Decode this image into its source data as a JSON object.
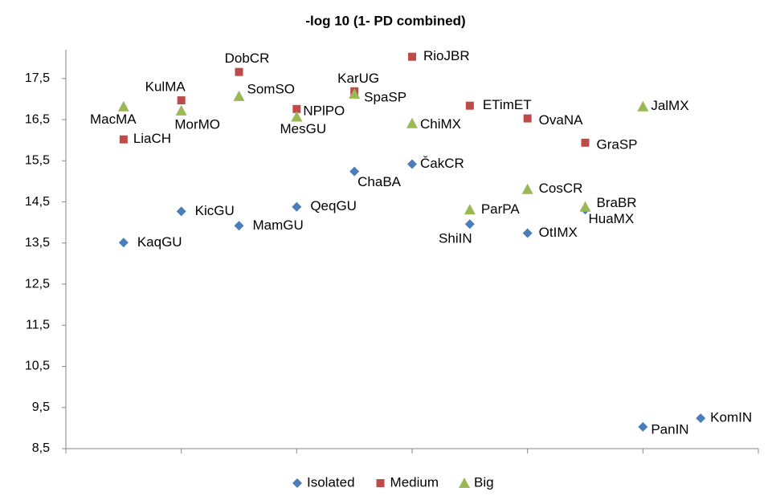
{
  "chart_data": {
    "type": "scatter",
    "title": "-log 10 (1- PD combined)",
    "xlim": [
      0,
      12
    ],
    "xticks": [
      0,
      2,
      4,
      6,
      8,
      10,
      12
    ],
    "ylim": [
      8.5,
      18.2
    ],
    "yticks": [
      {
        "value": 8.5,
        "label": "8,5"
      },
      {
        "value": 9.5,
        "label": "9,5"
      },
      {
        "value": 10.5,
        "label": "10,5"
      },
      {
        "value": 11.5,
        "label": "11,5"
      },
      {
        "value": 12.5,
        "label": "12,5"
      },
      {
        "value": 13.5,
        "label": "13,5"
      },
      {
        "value": 14.5,
        "label": "14,5"
      },
      {
        "value": 15.5,
        "label": "15,5"
      },
      {
        "value": 16.5,
        "label": "16,5"
      },
      {
        "value": 17.5,
        "label": "17,5"
      }
    ],
    "legend": "bottom",
    "series": [
      {
        "name": "Isolated",
        "color": "#4a7ebb",
        "marker": "diamond",
        "x": [
          1,
          2,
          3,
          4,
          5,
          6,
          7,
          8,
          9,
          10,
          11
        ],
        "values": [
          13.51,
          14.27,
          13.92,
          14.38,
          15.24,
          15.42,
          13.96,
          13.74,
          14.31,
          9.03,
          9.24
        ],
        "labels": [
          "KaqGU",
          "KicGU",
          "MamGU",
          "QeqGU",
          "ChaBA",
          "ČakCR",
          "ShiIN",
          "OtIMX",
          "HuaMX",
          "PanIN",
          "KomIN"
        ]
      },
      {
        "name": "Medium",
        "color": "#be4b48",
        "marker": "square",
        "x": [
          1,
          2,
          3,
          4,
          5,
          6,
          7,
          8,
          9
        ],
        "values": [
          16.02,
          16.97,
          17.66,
          16.76,
          17.19,
          18.03,
          16.84,
          16.53,
          15.94
        ],
        "labels": [
          "LiaCH",
          "KulMA",
          "DobCR",
          "NPlPO",
          "KarUG",
          "RioJBR",
          "ETimET",
          "OvaNA",
          "GraSP"
        ]
      },
      {
        "name": "Big",
        "color": "#98b954",
        "marker": "triangle",
        "x": [
          1,
          2,
          3,
          4,
          5,
          6,
          7,
          8,
          9,
          10
        ],
        "values": [
          16.82,
          16.72,
          17.07,
          16.57,
          17.13,
          16.41,
          14.31,
          14.81,
          14.38,
          16.82
        ],
        "labels": [
          "MacMA",
          "MorMO",
          "SomSO",
          "MesGU",
          "SpaSP",
          "ChiMX",
          "ParPA",
          "CosCR",
          "BraBR",
          "JalMX"
        ]
      }
    ]
  }
}
